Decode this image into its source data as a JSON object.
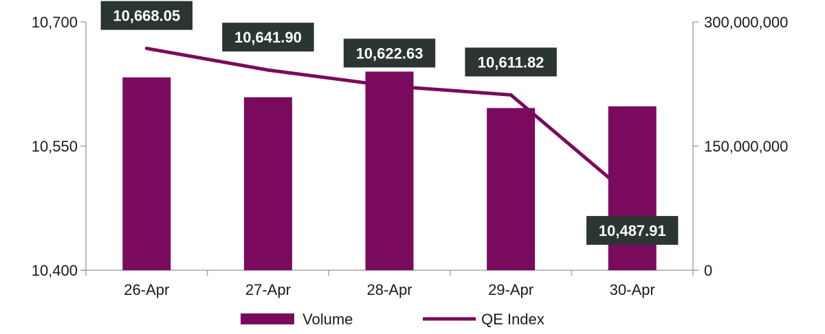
{
  "chart_data": {
    "type": "bar",
    "categories": [
      "26-Apr",
      "27-Apr",
      "28-Apr",
      "29-Apr",
      "30-Apr"
    ],
    "series": [
      {
        "name": "Volume",
        "type": "bar",
        "axis": "right",
        "values": [
          233000000,
          209000000,
          240000000,
          196000000,
          198000000
        ]
      },
      {
        "name": "QE Index",
        "type": "line",
        "axis": "left",
        "values": [
          10668.05,
          10641.9,
          10622.63,
          10611.82,
          10487.91
        ],
        "labels": [
          "10,668.05",
          "10,641.90",
          "10,622.63",
          "10,611.82",
          "10,487.91"
        ]
      }
    ],
    "y_left": {
      "range": [
        10400,
        10700
      ],
      "ticks": [
        10400,
        10550,
        10700
      ],
      "tick_labels": [
        "10,400",
        "10,550",
        "10,700"
      ]
    },
    "y_right": {
      "range": [
        0,
        300000000
      ],
      "ticks": [
        0,
        150000000,
        300000000
      ],
      "tick_labels": [
        "0",
        "150,000,000",
        "300,000,000"
      ]
    },
    "grid": false,
    "legend_position": "bottom",
    "colors": {
      "bar": "#7a0a5e",
      "line": "#7a0a5e",
      "label_bg": "#2b3533",
      "axis": "#a6a6a6"
    }
  }
}
